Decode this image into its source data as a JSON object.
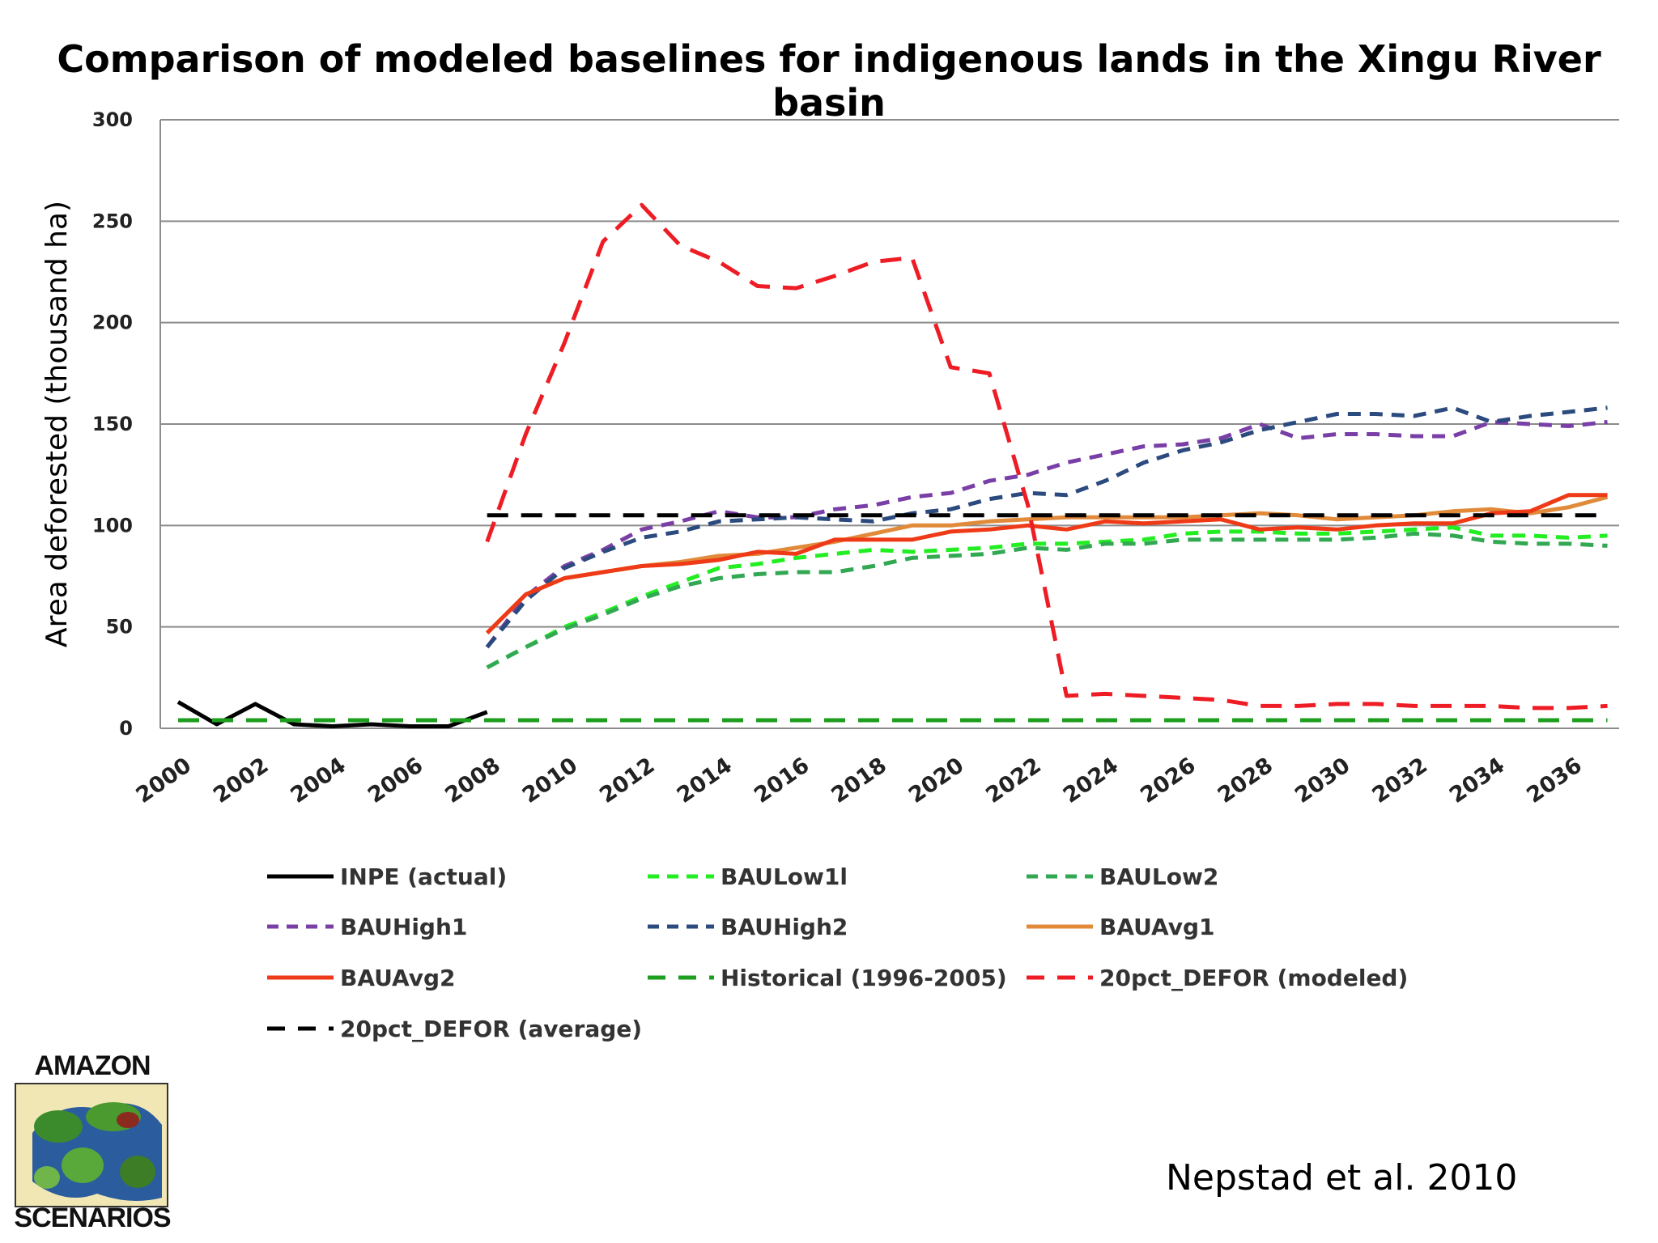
{
  "title": "Comparison of modeled baselines for indigenous lands in the Xingu River basin",
  "citation": "Nepstad et al. 2010",
  "logo": {
    "top_text": "AMAZON",
    "bottom_text": "SCENARIOS"
  },
  "chart_data": {
    "type": "line",
    "ylabel": "Area deforested (thousand ha)",
    "xlabel": "",
    "ylim": [
      0,
      300
    ],
    "yticks": [
      0,
      50,
      100,
      150,
      200,
      250,
      300
    ],
    "xlim": [
      2000,
      2037
    ],
    "xticks": [
      "2000",
      "2002",
      "2004",
      "2006",
      "2008",
      "2010",
      "2012",
      "2014",
      "2016",
      "2018",
      "2020",
      "2022",
      "2024",
      "2026",
      "2028",
      "2030",
      "2032",
      "2034",
      "2036"
    ],
    "grid": "horizontal",
    "legend_position": "bottom",
    "series": [
      {
        "name": "INPE (actual)",
        "color": "#000000",
        "dash": "solid",
        "x": [
          2000,
          2001,
          2002,
          2003,
          2004,
          2005,
          2006,
          2007,
          2008
        ],
        "y": [
          13,
          2,
          12,
          2,
          1,
          2,
          1,
          1,
          8
        ]
      },
      {
        "name": "BAULow1l",
        "color": "#22ee22",
        "dash": "dash",
        "x": [
          2008,
          2009,
          2010,
          2011,
          2012,
          2013,
          2014,
          2015,
          2016,
          2017,
          2018,
          2019,
          2020,
          2021,
          2022,
          2023,
          2024,
          2025,
          2026,
          2027,
          2028,
          2029,
          2030,
          2031,
          2032,
          2033,
          2034,
          2035,
          2036,
          2037
        ],
        "y": [
          30,
          40,
          50,
          57,
          65,
          72,
          79,
          81,
          84,
          86,
          88,
          87,
          88,
          89,
          91,
          91,
          92,
          93,
          96,
          97,
          97,
          96,
          96,
          97,
          98,
          99,
          95,
          95,
          94,
          95
        ]
      },
      {
        "name": "BAULow2",
        "color": "#33a853",
        "dash": "dash",
        "x": [
          2008,
          2009,
          2010,
          2011,
          2012,
          2013,
          2014,
          2015,
          2016,
          2017,
          2018,
          2019,
          2020,
          2021,
          2022,
          2023,
          2024,
          2025,
          2026,
          2027,
          2028,
          2029,
          2030,
          2031,
          2032,
          2033,
          2034,
          2035,
          2036,
          2037
        ],
        "y": [
          30,
          40,
          49,
          56,
          64,
          70,
          74,
          76,
          77,
          77,
          80,
          84,
          85,
          86,
          89,
          88,
          91,
          91,
          93,
          93,
          93,
          93,
          93,
          94,
          96,
          95,
          92,
          91,
          91,
          90
        ]
      },
      {
        "name": "BAUHigh1",
        "color": "#7a3fa6",
        "dash": "dash",
        "x": [
          2008,
          2009,
          2010,
          2011,
          2012,
          2013,
          2014,
          2015,
          2016,
          2017,
          2018,
          2019,
          2020,
          2021,
          2022,
          2023,
          2024,
          2025,
          2026,
          2027,
          2028,
          2029,
          2030,
          2031,
          2032,
          2033,
          2034,
          2035,
          2036,
          2037
        ],
        "y": [
          40,
          65,
          80,
          88,
          98,
          102,
          107,
          104,
          104,
          108,
          110,
          114,
          116,
          122,
          125,
          131,
          135,
          139,
          140,
          143,
          150,
          143,
          145,
          145,
          144,
          144,
          151,
          150,
          149,
          151
        ]
      },
      {
        "name": "BAUHigh2",
        "color": "#2b4a7e",
        "dash": "dash",
        "x": [
          2008,
          2009,
          2010,
          2011,
          2012,
          2013,
          2014,
          2015,
          2016,
          2017,
          2018,
          2019,
          2020,
          2021,
          2022,
          2023,
          2024,
          2025,
          2026,
          2027,
          2028,
          2029,
          2030,
          2031,
          2032,
          2033,
          2034,
          2035,
          2036,
          2037
        ],
        "y": [
          40,
          63,
          79,
          87,
          94,
          97,
          102,
          103,
          104,
          103,
          102,
          106,
          108,
          113,
          116,
          115,
          122,
          131,
          137,
          141,
          147,
          151,
          155,
          155,
          154,
          158,
          151,
          154,
          156,
          158
        ]
      },
      {
        "name": "BAUAvg1",
        "color": "#e08a3a",
        "dash": "solid",
        "x": [
          2008,
          2009,
          2010,
          2011,
          2012,
          2013,
          2014,
          2015,
          2016,
          2017,
          2018,
          2019,
          2020,
          2021,
          2022,
          2023,
          2024,
          2025,
          2026,
          2027,
          2028,
          2029,
          2030,
          2031,
          2032,
          2033,
          2034,
          2035,
          2036,
          2037
        ],
        "y": [
          47,
          66,
          74,
          77,
          80,
          82,
          85,
          86,
          89,
          92,
          96,
          100,
          100,
          102,
          103,
          104,
          104,
          104,
          104,
          105,
          106,
          105,
          103,
          104,
          105,
          107,
          108,
          106,
          109,
          114
        ]
      },
      {
        "name": "BAUAvg2",
        "color": "#ee3a16",
        "dash": "solid",
        "x": [
          2008,
          2009,
          2010,
          2011,
          2012,
          2013,
          2014,
          2015,
          2016,
          2017,
          2018,
          2019,
          2020,
          2021,
          2022,
          2023,
          2024,
          2025,
          2026,
          2027,
          2028,
          2029,
          2030,
          2031,
          2032,
          2033,
          2034,
          2035,
          2036,
          2037
        ],
        "y": [
          47,
          66,
          74,
          77,
          80,
          81,
          83,
          87,
          86,
          93,
          93,
          93,
          97,
          98,
          100,
          98,
          102,
          101,
          102,
          103,
          98,
          99,
          98,
          100,
          101,
          101,
          106,
          107,
          115,
          115
        ]
      },
      {
        "name": "Historical (1996-2005)",
        "color": "#1e9e1e",
        "dash": "longdash",
        "x": [
          2000,
          2037
        ],
        "y": [
          4,
          4
        ]
      },
      {
        "name": "20pct_DEFOR (modeled)",
        "color": "#ee1c24",
        "dash": "longdash",
        "x": [
          2008,
          2009,
          2010,
          2011,
          2012,
          2013,
          2014,
          2015,
          2016,
          2017,
          2018,
          2019,
          2020,
          2021,
          2022,
          2023,
          2024,
          2025,
          2026,
          2027,
          2028,
          2029,
          2030,
          2031,
          2032,
          2033,
          2034,
          2035,
          2036,
          2037
        ],
        "y": [
          92,
          145,
          190,
          240,
          258,
          238,
          230,
          218,
          217,
          223,
          230,
          232,
          178,
          175,
          110,
          16,
          17,
          16,
          15,
          14,
          11,
          11,
          12,
          12,
          11,
          11,
          11,
          10,
          10,
          11
        ]
      },
      {
        "name": "20pct_DEFOR (average)",
        "color": "#000000",
        "dash": "longdash",
        "x": [
          2008,
          2037
        ],
        "y": [
          105,
          105
        ]
      }
    ]
  }
}
